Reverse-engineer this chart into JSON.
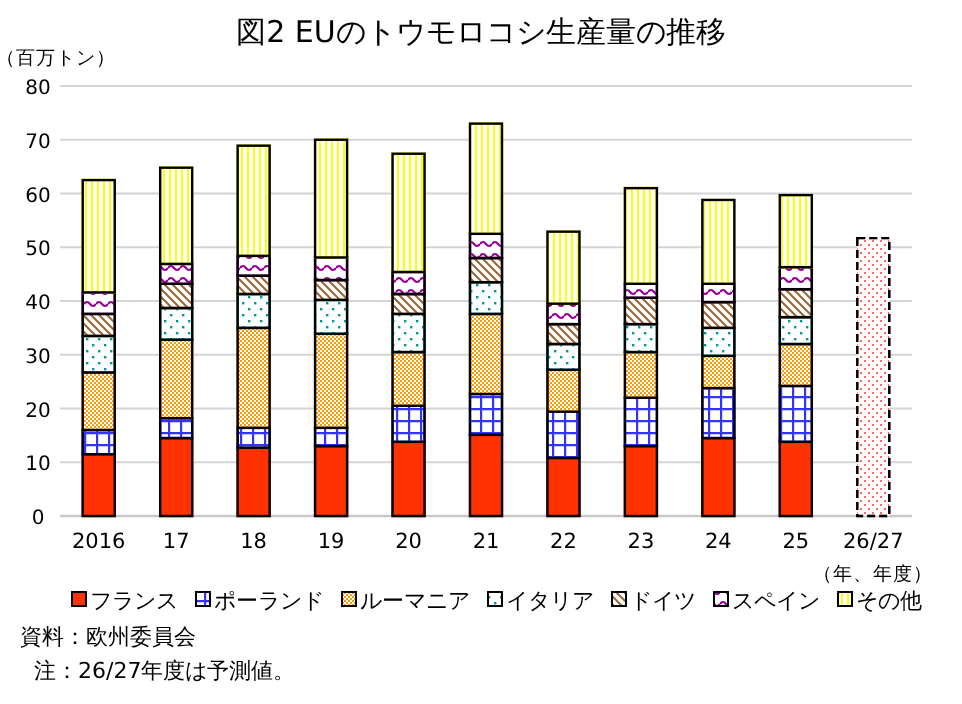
{
  "chart_data": {
    "type": "bar",
    "stacked": true,
    "title": "図2  EUのトウモロコシ生産量の推移",
    "ylabel": "（百万トン）",
    "xlabel": "（年、年度）",
    "categories": [
      "2016",
      "17",
      "18",
      "19",
      "20",
      "21",
      "22",
      "23",
      "24",
      "25",
      "26/27"
    ],
    "series": [
      {
        "name": "フランス",
        "color": "#ff3300",
        "values": [
          11.5,
          14.5,
          12.7,
          13.0,
          13.8,
          15.1,
          10.8,
          13.0,
          14.5,
          13.8,
          null
        ]
      },
      {
        "name": "ポーランド",
        "color": "#3333ff",
        "values": [
          4.5,
          3.7,
          3.7,
          3.4,
          6.7,
          7.6,
          8.6,
          9.0,
          9.3,
          10.4,
          null
        ]
      },
      {
        "name": "ルーマニア",
        "color": "#ff9900",
        "values": [
          10.7,
          14.6,
          18.6,
          17.5,
          10.0,
          14.9,
          7.8,
          8.5,
          6.0,
          7.8,
          null
        ]
      },
      {
        "name": "イタリア",
        "color": "#009999",
        "values": [
          6.8,
          5.9,
          6.3,
          6.3,
          7.1,
          5.9,
          4.8,
          5.2,
          5.2,
          5.0,
          null
        ]
      },
      {
        "name": "ドイツ",
        "color": "#996633",
        "values": [
          4.1,
          4.5,
          3.4,
          3.7,
          3.7,
          4.5,
          3.7,
          4.9,
          4.8,
          5.2,
          null
        ]
      },
      {
        "name": "スペイン",
        "color": "#990099",
        "values": [
          4.0,
          3.7,
          3.7,
          4.2,
          4.1,
          4.5,
          3.8,
          2.6,
          3.4,
          4.1,
          null
        ]
      },
      {
        "name": "その他",
        "color": "#ffff00",
        "values": [
          20.9,
          17.9,
          20.5,
          21.9,
          22.0,
          20.5,
          13.4,
          17.8,
          15.6,
          13.4,
          null
        ]
      },
      {
        "color": "#ff6666",
        "line_style": "dashed",
        "values": [
          null,
          null,
          null,
          null,
          null,
          null,
          null,
          null,
          null,
          null,
          51.7
        ]
      }
    ],
    "ylim": [
      0,
      80
    ],
    "yticks": [
      0,
      10,
      20,
      30,
      40,
      50,
      60,
      70,
      80
    ],
    "grid": "y",
    "legend": "bottom",
    "annotations": [
      "資料：欧州委員会",
      "注：26/27年度は予測値。"
    ]
  }
}
